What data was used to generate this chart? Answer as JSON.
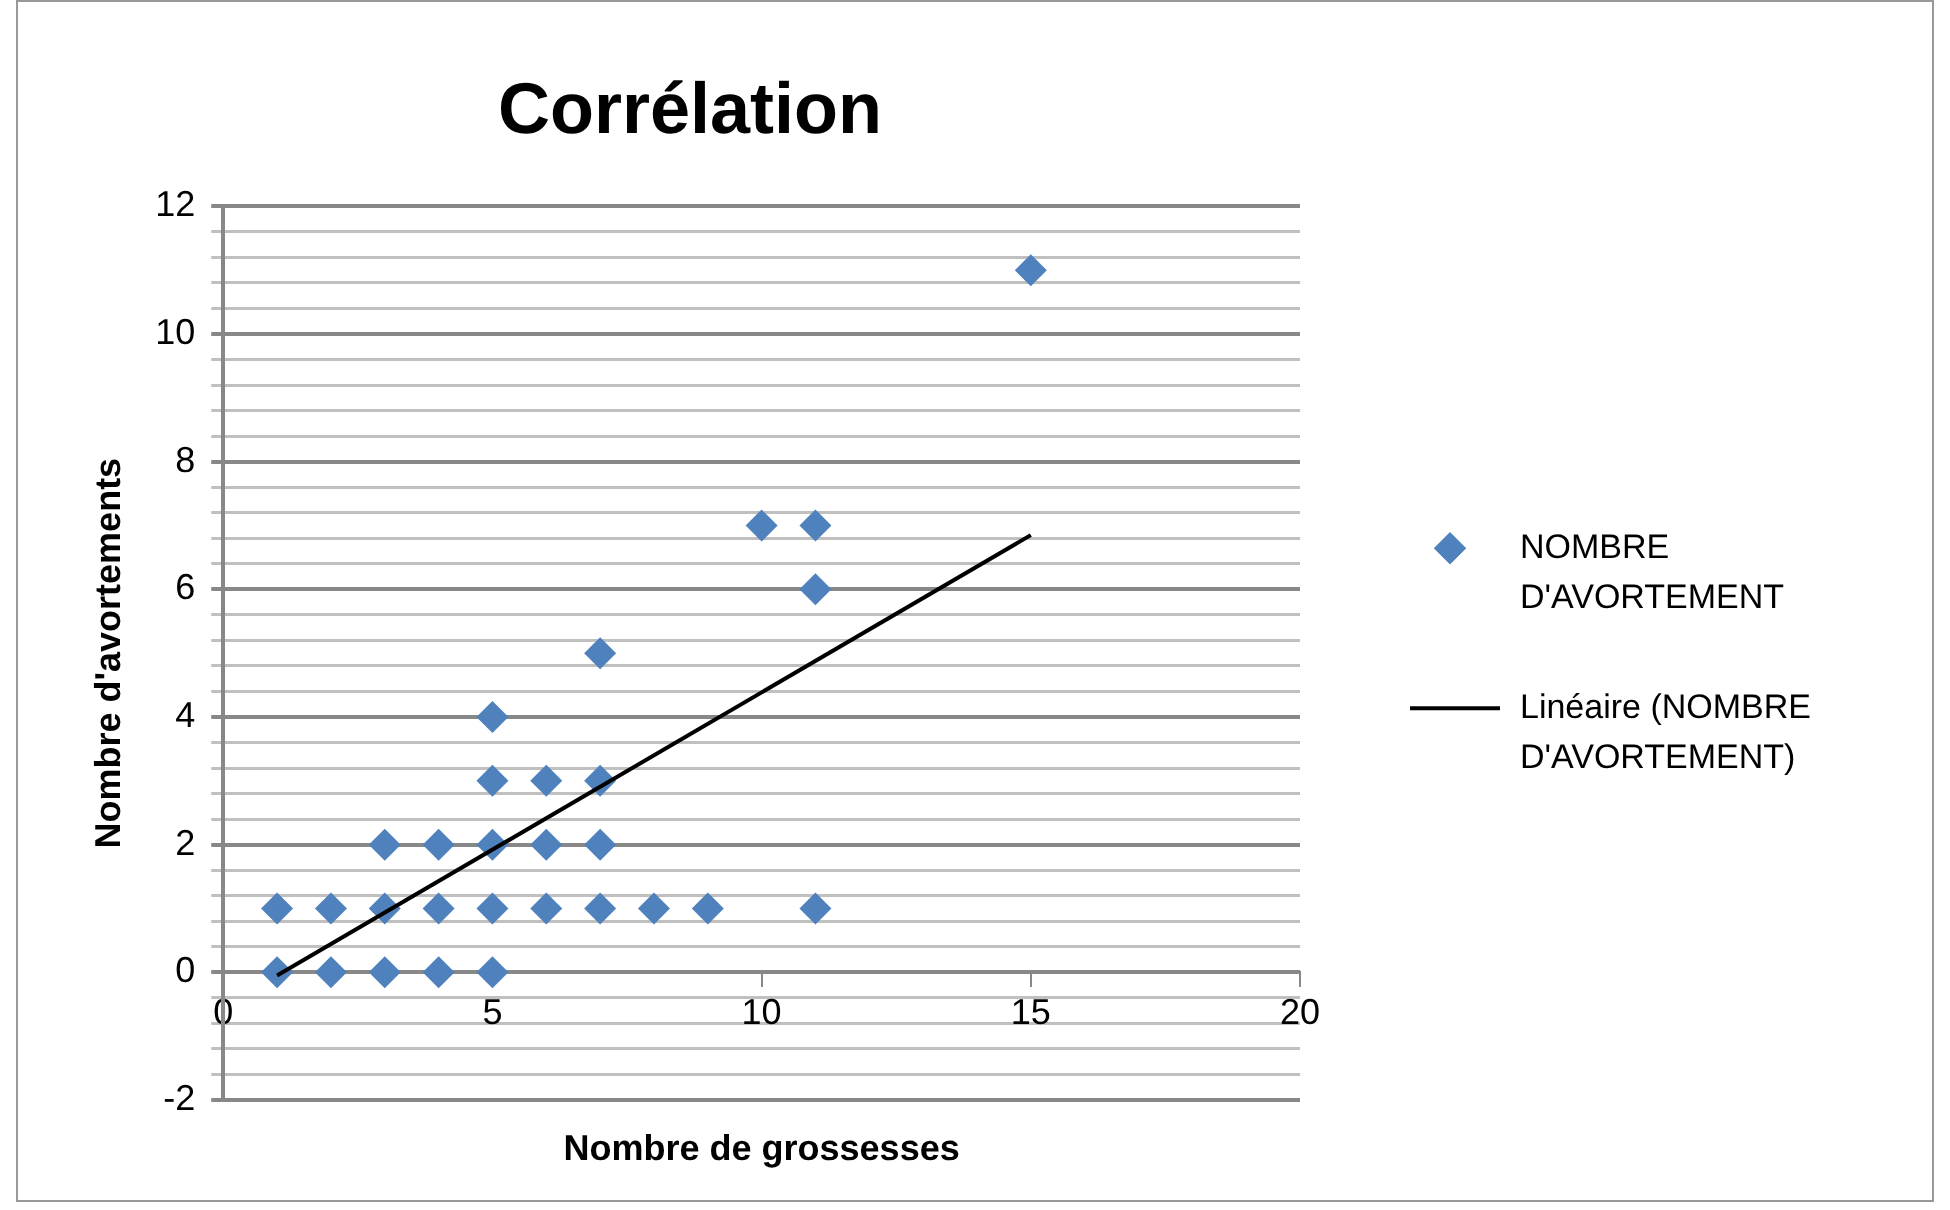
{
  "chart_data": {
    "type": "scatter",
    "title": "Corrélation",
    "xlabel": "Nombre de grossesses",
    "ylabel": "Nombre d'avortements",
    "xlim": [
      0,
      20
    ],
    "xticks": [
      0,
      5,
      10,
      15,
      20
    ],
    "ylim": [
      -2,
      12
    ],
    "yticks": [
      -2,
      {
        "value": -1.6,
        "label": null
      },
      {
        "value": -1.2,
        "label": null
      },
      {
        "value": -0.8,
        "label": null
      },
      {
        "value": -0.4,
        "label": null
      },
      0,
      {
        "value": 0.4,
        "label": null
      },
      {
        "value": 0.8,
        "label": null
      },
      {
        "value": 1.2,
        "label": null
      },
      {
        "value": 1.6,
        "label": null
      },
      2,
      {
        "value": 2.4,
        "label": null
      },
      {
        "value": 2.8,
        "label": null
      },
      {
        "value": 3.2,
        "label": null
      },
      {
        "value": 3.6,
        "label": null
      },
      4,
      {
        "value": 4.4,
        "label": null
      },
      {
        "value": 4.8,
        "label": null
      },
      {
        "value": 5.2,
        "label": null
      },
      {
        "value": 5.6,
        "label": null
      },
      6,
      {
        "value": 6.4,
        "label": null
      },
      {
        "value": 6.8,
        "label": null
      },
      {
        "value": 7.2,
        "label": null
      },
      {
        "value": 7.6,
        "label": null
      },
      8,
      {
        "value": 8.4,
        "label": null
      },
      {
        "value": 8.8,
        "label": null
      },
      {
        "value": 9.2,
        "label": null
      },
      {
        "value": 9.6,
        "label": null
      },
      10,
      {
        "value": 10.4,
        "label": null
      },
      {
        "value": 10.8,
        "label": null
      },
      {
        "value": 11.2,
        "label": null
      },
      {
        "value": 11.6,
        "label": null
      },
      12
    ],
    "grid": "y",
    "legend": "right",
    "marker": "diamond",
    "series": [
      {
        "name": "NOMBRE D'AVORTEMENT",
        "type": "scatter",
        "color": "#4f81bd",
        "x": [
          1,
          1,
          2,
          2,
          3,
          3,
          3,
          4,
          4,
          4,
          5,
          5,
          5,
          5,
          5,
          6,
          6,
          6,
          7,
          7,
          7,
          7,
          8,
          9,
          10,
          11,
          11,
          11,
          15
        ],
        "values": [
          0,
          1,
          0,
          1,
          0,
          1,
          2,
          0,
          1,
          2,
          0,
          1,
          2,
          3,
          4,
          1,
          2,
          3,
          1,
          2,
          3,
          5,
          1,
          1,
          7,
          7,
          6,
          1,
          11
        ]
      },
      {
        "name": "Linéaire (NOMBRE D'AVORTEMENT)",
        "type": "line",
        "color": "#000000",
        "marker": "none",
        "x": [
          1,
          15
        ],
        "values": [
          -0.05,
          6.85
        ]
      }
    ]
  }
}
